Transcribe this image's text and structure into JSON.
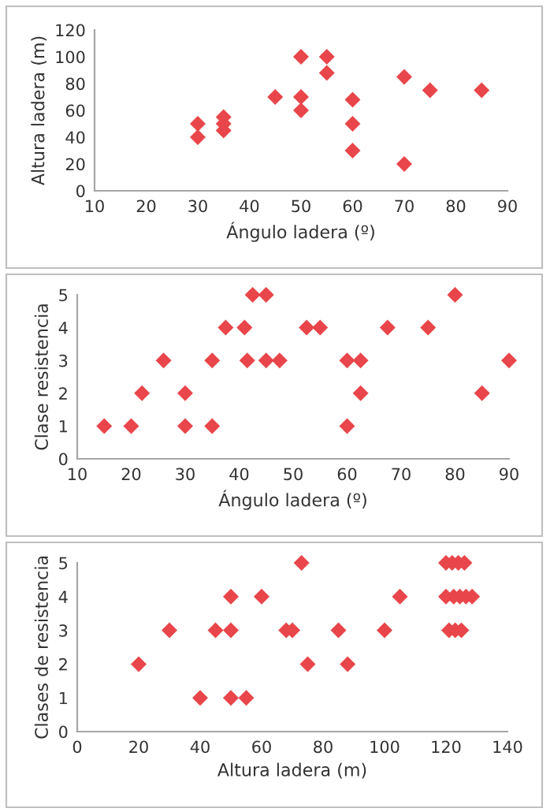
{
  "chart_data": [
    {
      "type": "scatter",
      "xlabel": "Ángulo ladera (º)",
      "ylabel": "Altura ladera (m)",
      "xlim": [
        10,
        90
      ],
      "xticks": [
        10,
        20,
        30,
        40,
        50,
        60,
        70,
        80,
        90
      ],
      "ylim": [
        0,
        120
      ],
      "yticks": [
        0,
        20,
        40,
        60,
        80,
        100,
        120
      ],
      "marker": "diamond",
      "grid": false,
      "legend": false,
      "series": [
        {
          "color": "#e8464a",
          "x": [
            30,
            30,
            35,
            35,
            35,
            45,
            50,
            50,
            50,
            55,
            55,
            60,
            60,
            60,
            70,
            70,
            75,
            85
          ],
          "values": [
            50,
            40,
            55,
            50,
            45,
            70,
            100,
            70,
            60,
            100,
            88,
            68,
            50,
            30,
            85,
            20,
            75,
            75
          ]
        }
      ]
    },
    {
      "type": "scatter",
      "xlabel": "Ángulo ladera (º)",
      "ylabel": "Clase resistencia",
      "xlim": [
        10,
        90
      ],
      "xticks": [
        10,
        20,
        30,
        40,
        50,
        60,
        70,
        80,
        90
      ],
      "ylim": [
        0,
        5
      ],
      "yticks": [
        0,
        1,
        2,
        3,
        4,
        5
      ],
      "marker": "diamond",
      "grid": false,
      "legend": false,
      "series": [
        {
          "color": "#e8464a",
          "x": [
            15,
            20,
            22,
            26,
            30,
            30,
            35,
            35,
            37.5,
            41,
            41.5,
            42.5,
            45,
            45,
            47.5,
            52.5,
            55,
            60,
            60,
            62.5,
            62.5,
            67.5,
            75,
            80,
            85,
            90
          ],
          "values": [
            1,
            1,
            2,
            3,
            2,
            1,
            3,
            1,
            4,
            4,
            3,
            5,
            5,
            3,
            3,
            4,
            4,
            3,
            1,
            3,
            2,
            4,
            4,
            5,
            2,
            3
          ]
        }
      ]
    },
    {
      "type": "scatter",
      "xlabel": "Altura ladera (m)",
      "ylabel": "Clases de resistencia",
      "xlim": [
        0,
        140
      ],
      "xticks": [
        0,
        20,
        40,
        60,
        80,
        100,
        120,
        140
      ],
      "ylim": [
        0,
        5
      ],
      "yticks": [
        0,
        1,
        2,
        3,
        4,
        5
      ],
      "marker": "diamond",
      "grid": false,
      "legend": false,
      "series": [
        {
          "color": "#e8464a",
          "x": [
            20,
            30,
            40,
            45,
            50,
            50,
            50,
            55,
            60,
            73,
            68,
            70,
            75,
            85,
            88,
            100,
            105,
            120,
            122,
            124,
            126,
            120,
            122.5,
            124.5,
            126.5,
            128.5,
            121,
            123,
            125
          ],
          "values": [
            2,
            3,
            1,
            3,
            4,
            3,
            1,
            1,
            4,
            5,
            3,
            3,
            2,
            3,
            2,
            3,
            4,
            5,
            5,
            5,
            5,
            4,
            4,
            4,
            4,
            4,
            3,
            3,
            3
          ]
        }
      ]
    }
  ]
}
